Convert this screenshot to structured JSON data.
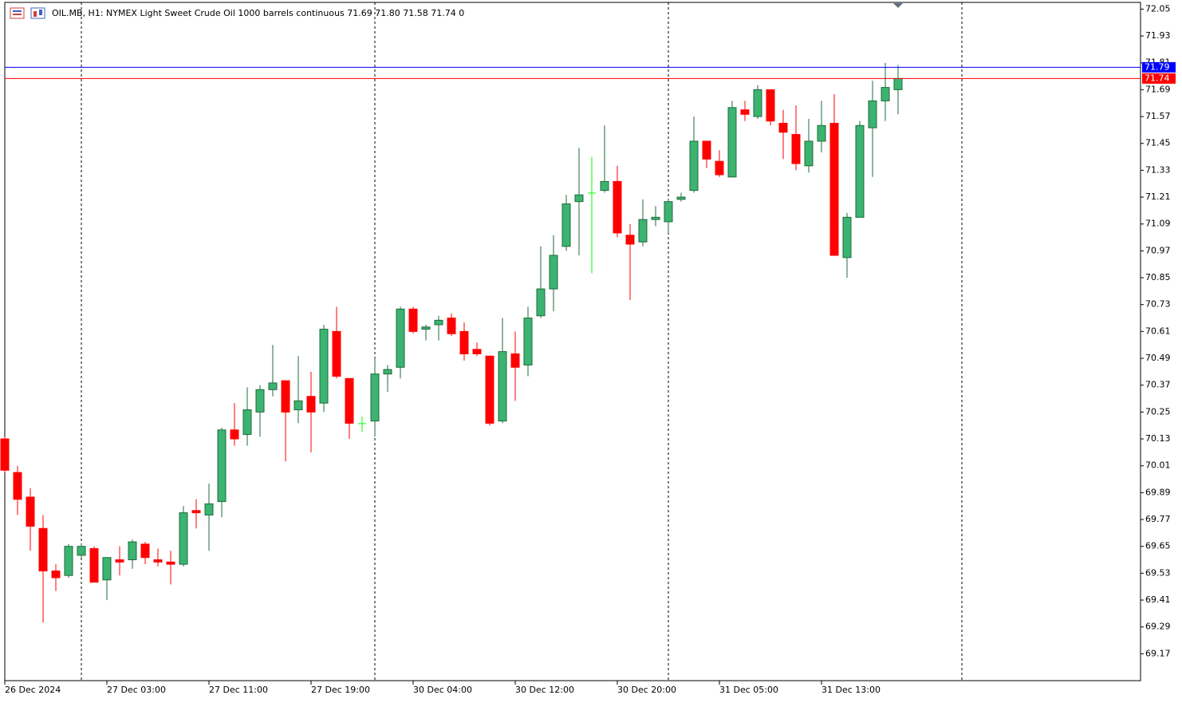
{
  "chart_data": {
    "type": "candlestick",
    "title": "OIL.MB, H1:  NYMEX Light Sweet Crude Oil 1000 barrels continuous  71.69 71.80 71.58 71.74  0",
    "categories": [
      "26 Dec 2024",
      null,
      null,
      null,
      null,
      null,
      null,
      null,
      "27 Dec 03:00",
      null,
      null,
      null,
      null,
      null,
      null,
      null,
      "27 Dec 11:00",
      null,
      null,
      null,
      null,
      null,
      null,
      null,
      "27 Dec 19:00",
      null,
      null,
      null,
      null,
      null,
      null,
      null,
      "30 Dec 04:00",
      null,
      null,
      null,
      null,
      null,
      null,
      null,
      "30 Dec 12:00",
      null,
      null,
      null,
      null,
      null,
      null,
      null,
      "30 Dec 20:00",
      null,
      null,
      null,
      null,
      null,
      null,
      null,
      "31 Dec 05:00",
      null,
      null,
      null,
      null,
      null,
      null,
      null,
      "31 Dec 13:00",
      null,
      null,
      null,
      null,
      null,
      null
    ],
    "open": [
      70.13,
      69.98,
      69.87,
      69.73,
      69.54,
      69.52,
      69.61,
      69.64,
      69.5,
      69.59,
      69.59,
      69.66,
      69.59,
      69.58,
      69.57,
      69.81,
      69.79,
      69.85,
      70.17,
      70.15,
      70.25,
      70.35,
      70.39,
      70.26,
      70.32,
      70.29,
      70.61,
      70.4,
      70.2,
      70.21,
      70.42,
      70.45,
      70.71,
      70.62,
      70.64,
      70.67,
      70.61,
      70.53,
      70.5,
      70.21,
      70.51,
      70.46,
      70.68,
      70.8,
      70.99,
      71.19,
      71.23,
      71.24,
      71.28,
      71.04,
      71.01,
      71.11,
      71.1,
      71.2,
      71.24,
      71.46,
      71.37,
      71.3,
      71.6,
      71.57,
      71.69,
      71.54,
      71.49,
      71.35,
      71.46,
      71.54,
      70.94,
      71.12,
      71.52,
      71.64,
      71.69
    ],
    "high": [
      70.14,
      70.01,
      69.91,
      69.79,
      69.57,
      69.66,
      69.66,
      69.65,
      69.6,
      69.65,
      69.68,
      69.67,
      69.64,
      69.63,
      69.83,
      69.86,
      69.93,
      70.18,
      70.29,
      70.36,
      70.37,
      70.55,
      70.39,
      70.5,
      70.43,
      70.64,
      70.72,
      70.4,
      70.23,
      70.49,
      70.46,
      70.72,
      70.72,
      70.64,
      70.68,
      70.69,
      70.65,
      70.56,
      70.5,
      70.67,
      70.61,
      70.72,
      70.99,
      71.04,
      71.22,
      71.43,
      71.39,
      71.53,
      71.35,
      71.09,
      71.2,
      71.17,
      71.2,
      71.23,
      71.57,
      71.46,
      71.42,
      71.64,
      71.64,
      71.71,
      71.69,
      71.6,
      71.62,
      71.56,
      71.64,
      71.67,
      71.14,
      71.55,
      71.73,
      71.81,
      71.8
    ],
    "low": [
      69.98,
      69.79,
      69.63,
      69.31,
      69.45,
      69.51,
      69.6,
      69.49,
      69.41,
      69.52,
      69.55,
      69.57,
      69.56,
      69.48,
      69.56,
      69.73,
      69.63,
      69.78,
      70.1,
      70.1,
      70.14,
      70.32,
      70.03,
      70.2,
      70.07,
      70.25,
      70.4,
      70.13,
      70.16,
      70.14,
      70.34,
      70.4,
      70.6,
      70.57,
      70.57,
      70.59,
      70.48,
      70.5,
      70.19,
      70.2,
      70.3,
      70.41,
      70.67,
      70.7,
      70.97,
      70.95,
      70.87,
      71.23,
      71.03,
      70.75,
      70.99,
      71.08,
      71.05,
      71.19,
      71.23,
      71.34,
      71.3,
      71.3,
      71.55,
      71.56,
      71.53,
      71.38,
      71.33,
      71.32,
      71.41,
      70.95,
      70.85,
      71.12,
      71.3,
      71.55,
      71.58
    ],
    "close": [
      69.99,
      69.86,
      69.74,
      69.54,
      69.51,
      69.65,
      69.65,
      69.49,
      69.6,
      69.58,
      69.67,
      69.6,
      69.58,
      69.57,
      69.8,
      69.8,
      69.84,
      70.17,
      70.13,
      70.26,
      70.35,
      70.38,
      70.25,
      70.3,
      70.25,
      70.62,
      70.41,
      70.2,
      70.2,
      70.42,
      70.44,
      70.71,
      70.61,
      70.63,
      70.66,
      70.6,
      70.51,
      70.51,
      70.2,
      70.52,
      70.45,
      70.67,
      70.8,
      70.95,
      71.18,
      71.22,
      71.23,
      71.28,
      71.05,
      71.0,
      71.11,
      71.12,
      71.19,
      71.21,
      71.46,
      71.38,
      71.31,
      71.61,
      71.58,
      71.69,
      71.55,
      71.5,
      71.36,
      71.46,
      71.53,
      70.95,
      71.12,
      71.53,
      71.64,
      71.7,
      71.74
    ],
    "up_color": "#3cb371",
    "down_color": "#ff0000",
    "doji_color": "#00ff00",
    "ylim": [
      69.05,
      72.08
    ],
    "yticks": [
      72.05,
      71.93,
      71.81,
      71.69,
      71.57,
      71.45,
      71.33,
      71.21,
      71.09,
      70.97,
      70.85,
      70.73,
      70.61,
      70.49,
      70.37,
      70.25,
      70.13,
      70.01,
      69.89,
      69.77,
      69.65,
      69.53,
      69.41,
      69.29,
      69.17
    ],
    "price_lines": [
      {
        "value": 71.79,
        "color": "#0000ff"
      },
      {
        "value": 71.74,
        "color": "#ff0000"
      }
    ]
  }
}
